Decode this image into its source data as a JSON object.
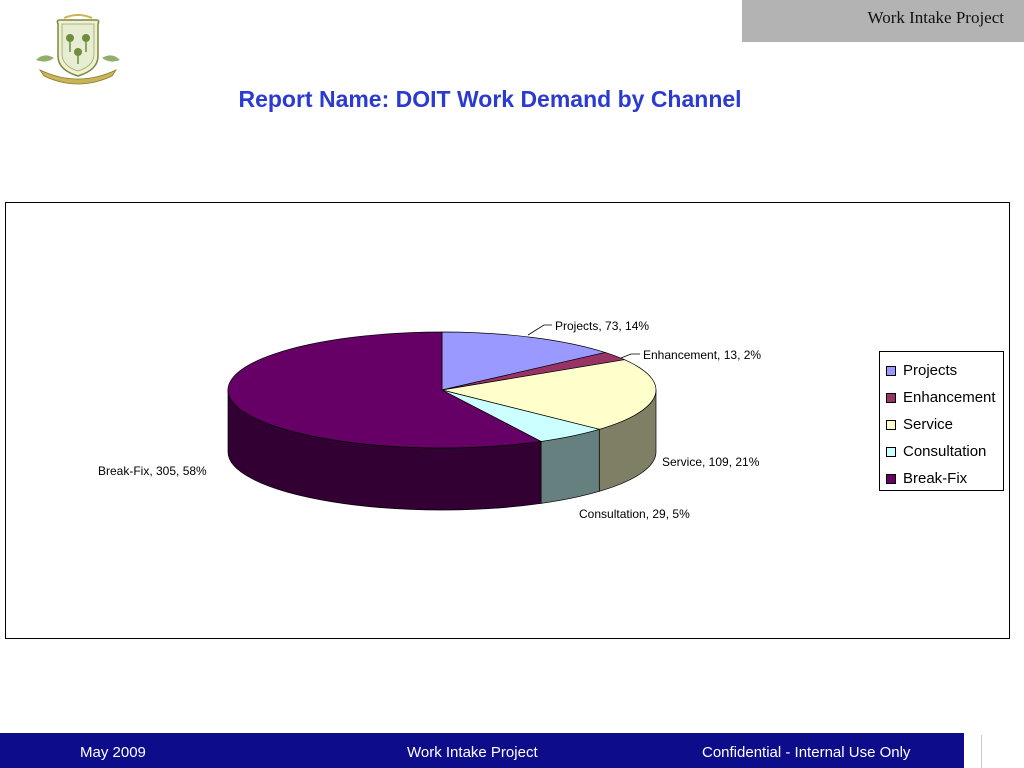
{
  "header": {
    "project_tab": "Work Intake Project"
  },
  "logo": {
    "icon": "state-seal-icon"
  },
  "report": {
    "title": "Report Name:  DOIT Work Demand by Channel"
  },
  "chart_data": {
    "type": "pie",
    "style": "3d",
    "title": "",
    "slices": [
      {
        "name": "Projects",
        "value": 73,
        "percent": 14,
        "label": "Projects, 73, 14%",
        "color": "#9999ff",
        "side": "#6f6fb8"
      },
      {
        "name": "Enhancement",
        "value": 13,
        "percent": 2,
        "label": "Enhancement, 13, 2%",
        "color": "#993366",
        "side": "#6b2447"
      },
      {
        "name": "Service",
        "value": 109,
        "percent": 21,
        "label": "Service, 109, 21%",
        "color": "#ffffcc",
        "side": "#7f7f66"
      },
      {
        "name": "Consultation",
        "value": 29,
        "percent": 5,
        "label": "Consultation, 29, 5%",
        "color": "#ccffff",
        "side": "#667f7f"
      },
      {
        "name": "Break-Fix",
        "value": 305,
        "percent": 58,
        "label": "Break-Fix, 305, 58%",
        "color": "#660066",
        "side": "#330033"
      }
    ],
    "legend": {
      "position": "right",
      "entries": [
        "Projects",
        "Enhancement",
        "Service",
        "Consultation",
        "Break-Fix"
      ]
    }
  },
  "footer": {
    "date": "May 2009",
    "project": "Work Intake Project",
    "confidentiality": "Confidential - Internal Use Only"
  }
}
